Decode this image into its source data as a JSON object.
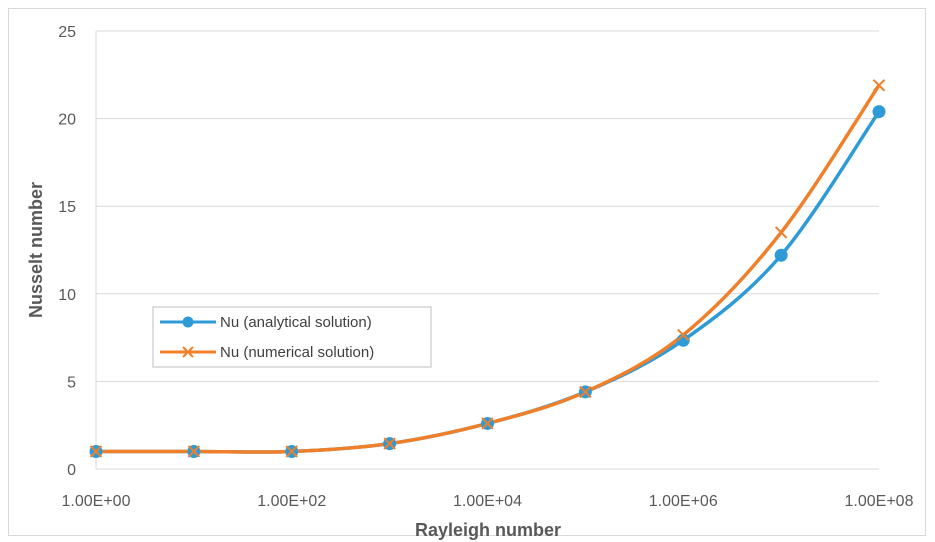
{
  "chart_data": {
    "type": "line",
    "xscale": "log",
    "x": [
      1,
      10,
      100,
      1000,
      10000,
      100000,
      1000000,
      10000000,
      100000000
    ],
    "xticks": [
      1,
      100,
      10000,
      1000000,
      100000000
    ],
    "xtick_labels": [
      "1.00E+00",
      "1.00E+02",
      "1.00E+04",
      "1.00E+06",
      "1.00E+08"
    ],
    "xlim": [
      1,
      100000000
    ],
    "ylim": [
      0,
      25
    ],
    "yticks": [
      0,
      5,
      10,
      15,
      20,
      25
    ],
    "ytick_labels": [
      "0",
      "5",
      "10",
      "15",
      "20",
      "25"
    ],
    "xlabel": "Rayleigh number",
    "ylabel": "Nusselt number",
    "grid": "horizontal",
    "legend_placement": "center-left",
    "series": [
      {
        "name": "Nu (analytical solution)",
        "color": "#2e9bd6",
        "marker": "circle",
        "values": [
          1.0,
          1.0,
          1.0,
          1.45,
          2.6,
          4.4,
          7.35,
          12.2,
          20.4
        ]
      },
      {
        "name": "Nu (numerical solution)",
        "color": "#f07f2a",
        "marker": "x",
        "values": [
          1.0,
          1.0,
          1.0,
          1.45,
          2.6,
          4.4,
          7.65,
          13.5,
          21.9
        ]
      }
    ]
  }
}
